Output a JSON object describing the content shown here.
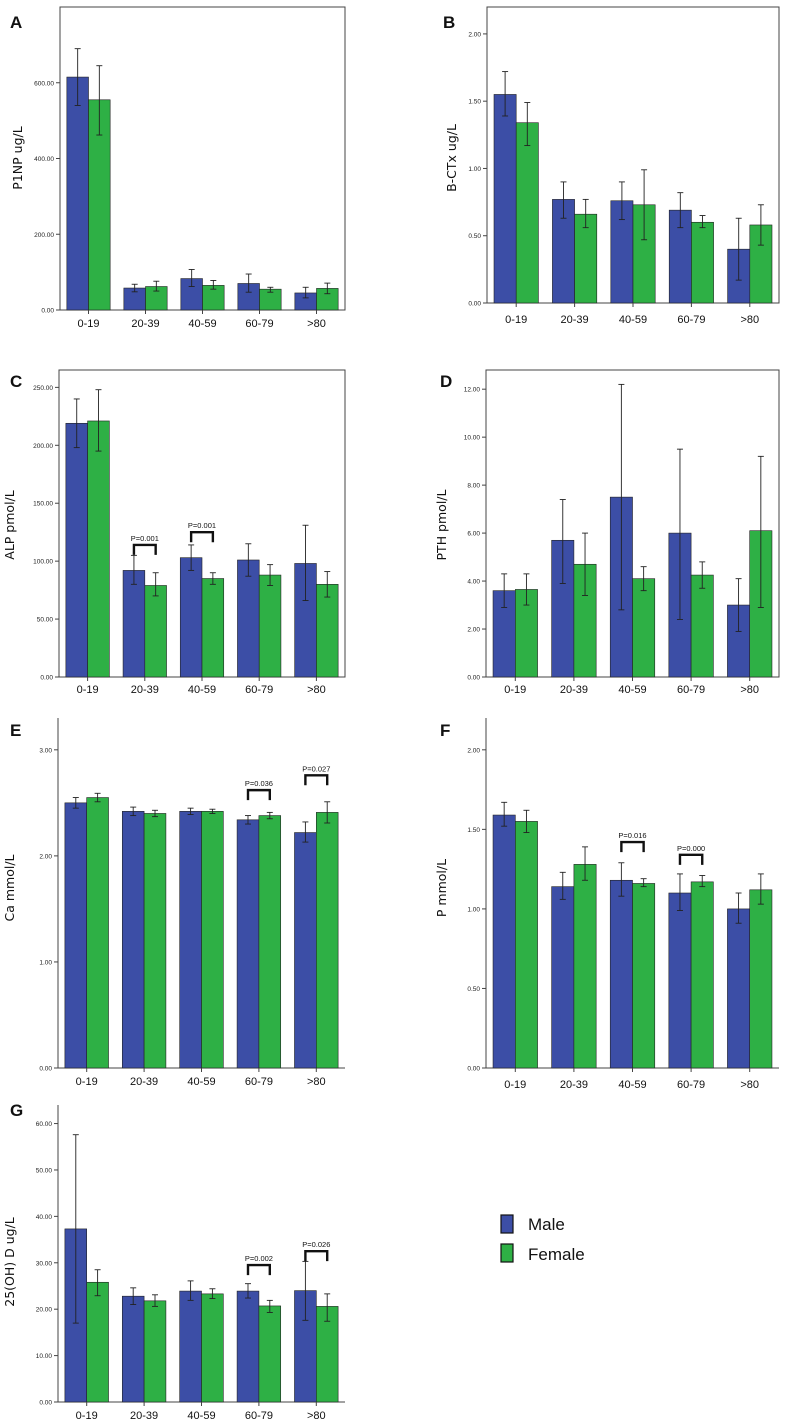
{
  "colors": {
    "male": "#3c4ea6",
    "female": "#2eb045",
    "axis": "#444444",
    "errbar": "#222222"
  },
  "legend": {
    "male_label": "Male",
    "female_label": "Female"
  },
  "chart_data": [
    {
      "panel": "A",
      "type": "bar",
      "ylabel": "P1NP ug/L",
      "categories": [
        "0-19",
        "20-39",
        "40-59",
        "60-79",
        ">80"
      ],
      "ylim": [
        0,
        800
      ],
      "yticks": [
        0,
        200,
        400,
        600
      ],
      "tick_labels": [
        "0.00",
        "200.00",
        "400.00",
        "600.00"
      ],
      "series": [
        {
          "name": "Male",
          "values": [
            615,
            58,
            83,
            70,
            45
          ],
          "err_low": [
            540,
            48,
            62,
            47,
            32
          ],
          "err_high": [
            690,
            68,
            107,
            95,
            60
          ]
        },
        {
          "name": "Female",
          "values": [
            555,
            62,
            65,
            55,
            57
          ],
          "err_low": [
            462,
            50,
            55,
            47,
            43
          ],
          "err_high": [
            645,
            76,
            78,
            60,
            71
          ]
        }
      ],
      "annotations": []
    },
    {
      "panel": "B",
      "type": "bar",
      "ylabel": "B-CTx ug/L",
      "categories": [
        "0-19",
        "20-39",
        "40-59",
        "60-79",
        ">80"
      ],
      "ylim": [
        0,
        2.2
      ],
      "yticks": [
        0,
        0.5,
        1.0,
        1.5,
        2.0
      ],
      "tick_labels": [
        "0.00",
        "0.50",
        "1.00",
        "1.50",
        "2.00"
      ],
      "series": [
        {
          "name": "Male",
          "values": [
            1.55,
            0.77,
            0.76,
            0.69,
            0.4
          ],
          "err_low": [
            1.39,
            0.63,
            0.62,
            0.56,
            0.17
          ],
          "err_high": [
            1.72,
            0.9,
            0.9,
            0.82,
            0.63
          ]
        },
        {
          "name": "Female",
          "values": [
            1.34,
            0.66,
            0.73,
            0.6,
            0.58
          ],
          "err_low": [
            1.17,
            0.56,
            0.47,
            0.56,
            0.43
          ],
          "err_high": [
            1.49,
            0.77,
            0.99,
            0.65,
            0.73
          ]
        }
      ],
      "annotations": []
    },
    {
      "panel": "C",
      "type": "bar",
      "ylabel": "ALP pmol/L",
      "categories": [
        "0-19",
        "20-39",
        "40-59",
        "60-79",
        ">80"
      ],
      "ylim": [
        0,
        265
      ],
      "yticks": [
        0,
        50,
        100,
        150,
        200,
        250
      ],
      "tick_labels": [
        "0.00",
        "50.00",
        "100.00",
        "150.00",
        "200.00",
        "250.00"
      ],
      "series": [
        {
          "name": "Male",
          "values": [
            219,
            92,
            103,
            101,
            98
          ],
          "err_low": [
            198,
            80,
            92,
            87,
            66
          ],
          "err_high": [
            240,
            105,
            114,
            115,
            131
          ]
        },
        {
          "name": "Female",
          "values": [
            221,
            79,
            85,
            88,
            80
          ],
          "err_low": [
            195,
            70,
            80,
            79,
            69
          ],
          "err_high": [
            248,
            90,
            90,
            97,
            91
          ]
        }
      ],
      "annotations": [
        {
          "group": 1,
          "label": "P=0.001",
          "y": 114
        },
        {
          "group": 2,
          "label": "P=0.001",
          "y": 125
        }
      ]
    },
    {
      "panel": "D",
      "type": "bar",
      "ylabel": "PTH pmol/L",
      "categories": [
        "0-19",
        "20-39",
        "40-59",
        "60-79",
        ">80"
      ],
      "ylim": [
        0,
        12.8
      ],
      "yticks": [
        0,
        2,
        4,
        6,
        8,
        10,
        12
      ],
      "tick_labels": [
        "0.00",
        "2.00",
        "4.00",
        "6.00",
        "8.00",
        "10.00",
        "12.00"
      ],
      "series": [
        {
          "name": "Male",
          "values": [
            3.6,
            5.7,
            7.5,
            6.0,
            3.0
          ],
          "err_low": [
            2.9,
            3.9,
            2.8,
            2.4,
            1.9
          ],
          "err_high": [
            4.3,
            7.4,
            12.2,
            9.5,
            4.1
          ]
        },
        {
          "name": "Female",
          "values": [
            3.65,
            4.7,
            4.1,
            4.25,
            6.1
          ],
          "err_low": [
            3.0,
            3.4,
            3.6,
            3.7,
            2.9
          ],
          "err_high": [
            4.3,
            6.0,
            4.6,
            4.8,
            9.2
          ]
        }
      ],
      "annotations": []
    },
    {
      "panel": "E",
      "type": "bar",
      "ylabel": "Ca mmol/L",
      "categories": [
        "0-19",
        "20-39",
        "40-59",
        "60-79",
        ">80"
      ],
      "ylim": [
        0,
        3.3
      ],
      "yticks": [
        0,
        1,
        2,
        3
      ],
      "tick_labels": [
        "0.00",
        "1.00",
        "2.00",
        "3.00"
      ],
      "series": [
        {
          "name": "Male",
          "values": [
            2.5,
            2.42,
            2.42,
            2.34,
            2.22
          ],
          "err_low": [
            2.45,
            2.38,
            2.39,
            2.3,
            2.13
          ],
          "err_high": [
            2.55,
            2.46,
            2.45,
            2.38,
            2.32
          ]
        },
        {
          "name": "Female",
          "values": [
            2.55,
            2.4,
            2.42,
            2.38,
            2.41
          ],
          "err_low": [
            2.51,
            2.37,
            2.4,
            2.35,
            2.31
          ],
          "err_high": [
            2.59,
            2.43,
            2.44,
            2.41,
            2.51
          ]
        }
      ],
      "annotations": [
        {
          "group": 3,
          "label": "P=0.036",
          "y": 2.62
        },
        {
          "group": 4,
          "label": "P=0.027",
          "y": 2.76
        }
      ]
    },
    {
      "panel": "F",
      "type": "bar",
      "ylabel": "P mmol/L",
      "categories": [
        "0-19",
        "20-39",
        "40-59",
        "60-79",
        ">80"
      ],
      "ylim": [
        0,
        2.2
      ],
      "yticks": [
        0,
        0.5,
        1.0,
        1.5,
        2.0
      ],
      "tick_labels": [
        "0.00",
        "0.50",
        "1.00",
        "1.50",
        "2.00"
      ],
      "series": [
        {
          "name": "Male",
          "values": [
            1.59,
            1.14,
            1.18,
            1.1,
            1.0
          ],
          "err_low": [
            1.52,
            1.06,
            1.08,
            0.99,
            0.91
          ],
          "err_high": [
            1.67,
            1.23,
            1.29,
            1.22,
            1.1
          ]
        },
        {
          "name": "Female",
          "values": [
            1.55,
            1.28,
            1.16,
            1.17,
            1.12
          ],
          "err_low": [
            1.48,
            1.18,
            1.14,
            1.14,
            1.03
          ],
          "err_high": [
            1.62,
            1.39,
            1.19,
            1.21,
            1.22
          ]
        }
      ],
      "annotations": [
        {
          "group": 2,
          "label": "P=0.016",
          "y": 1.42
        },
        {
          "group": 3,
          "label": "P=0.000",
          "y": 1.34
        }
      ]
    },
    {
      "panel": "G",
      "type": "bar",
      "ylabel": "25(OH) D ug/L",
      "categories": [
        "0-19",
        "20-39",
        "40-59",
        "60-79",
        ">80"
      ],
      "ylim": [
        0,
        64
      ],
      "yticks": [
        0,
        10,
        20,
        30,
        40,
        50,
        60
      ],
      "tick_labels": [
        "0.00",
        "10.00",
        "20.00",
        "30.00",
        "40.00",
        "50.00",
        "60.00"
      ],
      "series": [
        {
          "name": "Male",
          "values": [
            37.3,
            22.8,
            23.9,
            23.9,
            24.0
          ],
          "err_low": [
            17.0,
            21.0,
            21.9,
            22.4,
            17.6
          ],
          "err_high": [
            57.6,
            24.6,
            26.1,
            25.5,
            30.3
          ]
        },
        {
          "name": "Female",
          "values": [
            25.8,
            21.8,
            23.3,
            20.7,
            20.6
          ],
          "err_low": [
            22.9,
            20.6,
            22.3,
            19.3,
            17.4
          ],
          "err_high": [
            28.5,
            23.1,
            24.4,
            21.9,
            23.3
          ]
        }
      ],
      "annotations": [
        {
          "group": 3,
          "label": "P=0.002",
          "y": 29.5
        },
        {
          "group": 4,
          "label": "P=0.026",
          "y": 32.5
        }
      ]
    }
  ]
}
